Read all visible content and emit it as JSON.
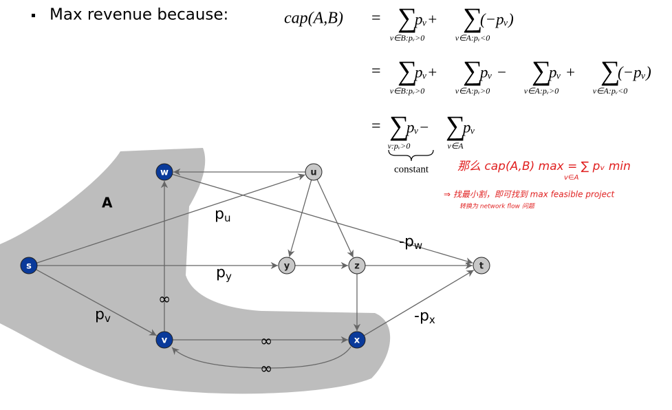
{
  "bullet": "Max revenue because:",
  "equation": {
    "lhs": "cap(A,B)",
    "sum_symbol": "∑",
    "rows": [
      {
        "relation": "=",
        "terms": [
          {
            "body": "pᵥ+",
            "index": "v∈B:pᵥ>0"
          },
          {
            "body": "(−pᵥ)",
            "index": "v∈A:pᵥ<0"
          }
        ]
      },
      {
        "relation": "=",
        "terms": [
          {
            "body": "pᵥ+",
            "index": "v∈B:pᵥ>0"
          },
          {
            "body": "pᵥ −",
            "index": "v∈A:pᵥ>0"
          },
          {
            "body": "pᵥ +",
            "index": "v∈A:pᵥ>0"
          },
          {
            "body": "(−pᵥ)",
            "index": "v∈A:pᵥ<0"
          }
        ]
      },
      {
        "relation": "=",
        "terms": [
          {
            "body": "pᵥ−",
            "index": "v:pᵥ>0"
          },
          {
            "body": "pᵥ",
            "index": "v∈A"
          }
        ]
      }
    ],
    "brace_label": "constant"
  },
  "annotations": [
    "那么 cap(A,B) max = ∑ pᵥ min",
    "v∈A",
    "⇒ 找最小割，即可找到 max feasible project",
    "转换为 network flow 问题"
  ],
  "region_label": "A",
  "nodes": [
    "s",
    "w",
    "u",
    "y",
    "z",
    "t",
    "v",
    "x"
  ],
  "edge_labels": [
    {
      "base": "p",
      "sub": "u"
    },
    {
      "base": "p",
      "sub": "y"
    },
    {
      "base": "p",
      "sub": "v"
    },
    {
      "base": "∞"
    },
    {
      "base": "-p",
      "sub": "w"
    },
    {
      "base": "-p",
      "sub": "x"
    },
    {
      "base": "∞"
    },
    {
      "base": "∞"
    }
  ]
}
